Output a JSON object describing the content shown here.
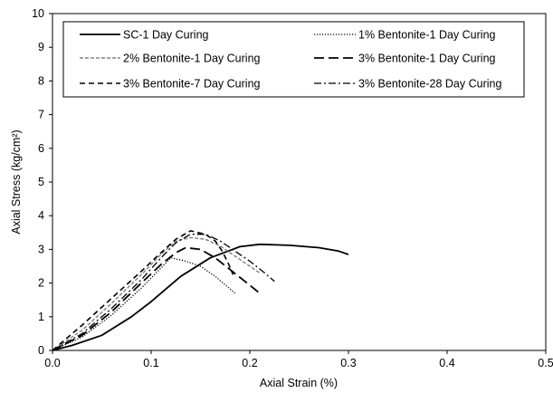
{
  "chart_data": {
    "type": "line",
    "title": "",
    "xlabel": "Axial Strain (%)",
    "ylabel": "Axial Stress (kg/cm²)",
    "xlim": [
      0.0,
      0.5
    ],
    "ylim": [
      0,
      10
    ],
    "x_ticks": [
      "0.0",
      "0.1",
      "0.2",
      "0.3",
      "0.4",
      "0.5"
    ],
    "y_ticks": [
      "0",
      "1",
      "2",
      "3",
      "4",
      "5",
      "6",
      "7",
      "8",
      "9",
      "10"
    ],
    "grid": false,
    "legend_position": "top",
    "series": [
      {
        "name": "SC-1 Day Curing",
        "color": "#000000",
        "dash": "solid",
        "points": [
          [
            0.0,
            0.0
          ],
          [
            0.02,
            0.15
          ],
          [
            0.05,
            0.45
          ],
          [
            0.08,
            1.0
          ],
          [
            0.1,
            1.45
          ],
          [
            0.13,
            2.2
          ],
          [
            0.16,
            2.75
          ],
          [
            0.19,
            3.08
          ],
          [
            0.21,
            3.15
          ],
          [
            0.24,
            3.12
          ],
          [
            0.27,
            3.05
          ],
          [
            0.29,
            2.95
          ],
          [
            0.3,
            2.85
          ]
        ]
      },
      {
        "name": "1% Bentonite-1 Day Curing",
        "color": "#000000",
        "dash": "dotted",
        "points": [
          [
            0.0,
            0.0
          ],
          [
            0.03,
            0.4
          ],
          [
            0.06,
            1.05
          ],
          [
            0.09,
            1.85
          ],
          [
            0.11,
            2.45
          ],
          [
            0.12,
            2.75
          ],
          [
            0.135,
            2.65
          ],
          [
            0.15,
            2.5
          ],
          [
            0.165,
            2.2
          ],
          [
            0.175,
            1.95
          ],
          [
            0.185,
            1.7
          ]
        ]
      },
      {
        "name": "2% Bentonite-1 Day Curing",
        "color": "#808080",
        "dash": "dashed",
        "points": [
          [
            0.0,
            0.0
          ],
          [
            0.03,
            0.6
          ],
          [
            0.06,
            1.4
          ],
          [
            0.09,
            2.25
          ],
          [
            0.11,
            2.85
          ],
          [
            0.125,
            3.25
          ],
          [
            0.14,
            3.35
          ],
          [
            0.155,
            3.3
          ],
          [
            0.17,
            3.1
          ],
          [
            0.185,
            2.8
          ],
          [
            0.2,
            2.5
          ],
          [
            0.21,
            2.3
          ]
        ]
      },
      {
        "name": "3% Bentonite-1 Day Curing",
        "color": "#000000",
        "dash": "longdash",
        "points": [
          [
            0.0,
            0.0
          ],
          [
            0.03,
            0.45
          ],
          [
            0.06,
            1.15
          ],
          [
            0.09,
            2.0
          ],
          [
            0.11,
            2.55
          ],
          [
            0.125,
            2.9
          ],
          [
            0.135,
            3.05
          ],
          [
            0.15,
            3.0
          ],
          [
            0.165,
            2.75
          ],
          [
            0.18,
            2.4
          ],
          [
            0.195,
            2.05
          ],
          [
            0.21,
            1.7
          ]
        ]
      },
      {
        "name": "3% Bentonite-7 Day Curing",
        "color": "#000000",
        "dash": "shortdash",
        "points": [
          [
            0.0,
            0.0
          ],
          [
            0.03,
            0.75
          ],
          [
            0.06,
            1.55
          ],
          [
            0.09,
            2.35
          ],
          [
            0.11,
            2.9
          ],
          [
            0.125,
            3.3
          ],
          [
            0.14,
            3.55
          ],
          [
            0.155,
            3.45
          ],
          [
            0.165,
            3.25
          ],
          [
            0.172,
            2.95
          ],
          [
            0.178,
            2.6
          ],
          [
            0.183,
            2.25
          ]
        ]
      },
      {
        "name": "3% Bentonite-28 Day Curing",
        "color": "#000000",
        "dash": "dashdot",
        "points": [
          [
            0.0,
            0.0
          ],
          [
            0.03,
            0.5
          ],
          [
            0.06,
            1.25
          ],
          [
            0.09,
            2.1
          ],
          [
            0.11,
            2.75
          ],
          [
            0.125,
            3.2
          ],
          [
            0.14,
            3.45
          ],
          [
            0.155,
            3.45
          ],
          [
            0.17,
            3.25
          ],
          [
            0.185,
            2.95
          ],
          [
            0.2,
            2.65
          ],
          [
            0.215,
            2.3
          ],
          [
            0.225,
            2.05
          ]
        ]
      }
    ]
  }
}
